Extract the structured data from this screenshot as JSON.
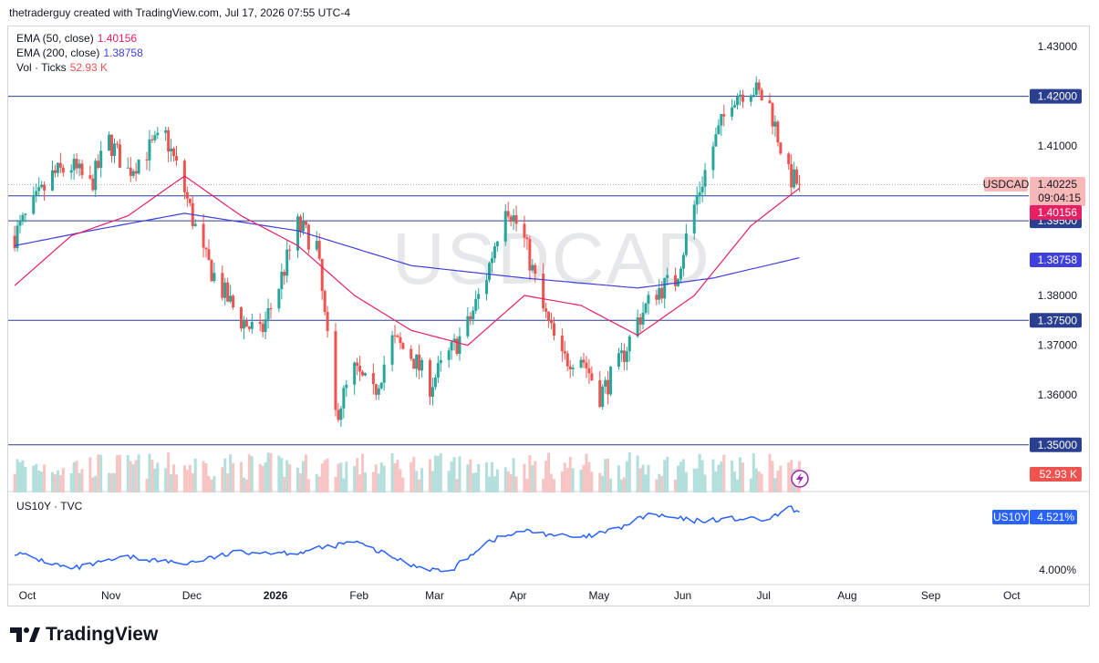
{
  "header": {
    "attribution": "thetraderguy created with TradingView.com, Jul 17, 2026 07:55 UTC-4"
  },
  "brand": {
    "name": "TradingView"
  },
  "watermark": "USDCAD",
  "legend": {
    "ema50_label": "EMA (50, close)",
    "ema50_value": "1.40156",
    "ema200_label": "EMA (200, close)",
    "ema200_value": "1.38758",
    "vol_label": "Vol · Ticks",
    "vol_value": "52.93 K"
  },
  "lower_pane": {
    "label": "US10Y · TVC"
  },
  "colors": {
    "up": "#26a69a",
    "down": "#ef5350",
    "ema50": "#e91e63",
    "ema200": "#3f3fdc",
    "hline": "#2a3f8f",
    "us10y": "#2962ff",
    "vol_up": "#b2dfdb",
    "vol_down": "#f7c4c4"
  },
  "price_axis": {
    "ticks": [
      "1.43000",
      "1.41000",
      "1.38000",
      "1.37000",
      "1.36000"
    ],
    "hline_tags": [
      "1.42000",
      "1.40000",
      "1.39500",
      "1.37500",
      "1.35000"
    ],
    "symbol_tag": "USDCAD",
    "last_price": "1.40225",
    "countdown": "09:04:15",
    "ema50_tag": "1.40156",
    "ema200_tag": "1.38758",
    "vol_tag": "52.93 K"
  },
  "lower_axis": {
    "symbol_tag": "US10Y",
    "value_tag": "4.521%",
    "tick": "4.000%"
  },
  "time_axis": [
    "Oct",
    "Nov",
    "Dec",
    "2026",
    "Feb",
    "Mar",
    "Apr",
    "May",
    "Jun",
    "Jul",
    "Aug",
    "Sep",
    "Oct"
  ],
  "chart_data": [
    {
      "type": "candlestick",
      "symbol": "USDCAD",
      "ylim": [
        1.348,
        1.433
      ],
      "horizontal_levels": [
        1.42,
        1.4,
        1.395,
        1.375,
        1.35
      ],
      "anchors_close": [
        [
          "2025-09-29",
          1.392
        ],
        [
          "2025-10-06",
          1.398
        ],
        [
          "2025-10-13",
          1.404
        ],
        [
          "2025-10-20",
          1.406
        ],
        [
          "2025-10-27",
          1.402
        ],
        [
          "2025-11-03",
          1.411
        ],
        [
          "2025-11-10",
          1.405
        ],
        [
          "2025-11-17",
          1.409
        ],
        [
          "2025-11-24",
          1.412
        ],
        [
          "2025-12-01",
          1.401
        ],
        [
          "2025-12-08",
          1.388
        ],
        [
          "2025-12-15",
          1.381
        ],
        [
          "2025-12-22",
          1.375
        ],
        [
          "2025-12-29",
          1.372
        ],
        [
          "2026-01-05",
          1.382
        ],
        [
          "2026-01-12",
          1.394
        ],
        [
          "2026-01-19",
          1.39
        ],
        [
          "2026-01-26",
          1.356
        ],
        [
          "2026-02-02",
          1.365
        ],
        [
          "2026-02-09",
          1.36
        ],
        [
          "2026-02-16",
          1.371
        ],
        [
          "2026-02-23",
          1.368
        ],
        [
          "2026-03-02",
          1.362
        ],
        [
          "2026-03-09",
          1.368
        ],
        [
          "2026-03-16",
          1.374
        ],
        [
          "2026-03-23",
          1.384
        ],
        [
          "2026-03-30",
          1.399
        ],
        [
          "2026-04-06",
          1.391
        ],
        [
          "2026-04-13",
          1.377
        ],
        [
          "2026-04-20",
          1.367
        ],
        [
          "2026-04-27",
          1.368
        ],
        [
          "2026-05-04",
          1.36
        ],
        [
          "2026-05-11",
          1.366
        ],
        [
          "2026-05-18",
          1.375
        ],
        [
          "2026-05-25",
          1.381
        ],
        [
          "2026-06-01",
          1.383
        ],
        [
          "2026-06-08",
          1.398
        ],
        [
          "2026-06-15",
          1.41
        ],
        [
          "2026-06-22",
          1.42
        ],
        [
          "2026-06-29",
          1.422
        ],
        [
          "2026-07-06",
          1.418
        ],
        [
          "2026-07-13",
          1.404
        ],
        [
          "2026-07-17",
          1.40225
        ]
      ],
      "ema50_anchors": [
        [
          "2025-09-29",
          1.382
        ],
        [
          "2025-10-20",
          1.392
        ],
        [
          "2025-11-10",
          1.396
        ],
        [
          "2025-12-01",
          1.404
        ],
        [
          "2025-12-22",
          1.396
        ],
        [
          "2026-01-12",
          1.39
        ],
        [
          "2026-02-02",
          1.38
        ],
        [
          "2026-02-23",
          1.373
        ],
        [
          "2026-03-16",
          1.37
        ],
        [
          "2026-04-06",
          1.38
        ],
        [
          "2026-04-27",
          1.378
        ],
        [
          "2026-05-18",
          1.372
        ],
        [
          "2026-06-08",
          1.38
        ],
        [
          "2026-06-29",
          1.394
        ],
        [
          "2026-07-17",
          1.40156
        ]
      ],
      "ema200_anchors": [
        [
          "2025-09-29",
          1.39
        ],
        [
          "2025-10-27",
          1.393
        ],
        [
          "2025-12-01",
          1.3965
        ],
        [
          "2026-01-12",
          1.393
        ],
        [
          "2026-02-23",
          1.386
        ],
        [
          "2026-04-06",
          1.3835
        ],
        [
          "2026-05-18",
          1.3815
        ],
        [
          "2026-06-15",
          1.3835
        ],
        [
          "2026-07-17",
          1.38758
        ]
      ],
      "last_price": 1.40225,
      "ema50_last": 1.40156,
      "ema200_last": 1.38758,
      "volume_last_k": 52.93
    },
    {
      "type": "line",
      "symbol": "US10Y",
      "unit": "%",
      "anchors": [
        [
          "2025-09-29",
          4.15
        ],
        [
          "2025-10-20",
          4.0
        ],
        [
          "2025-11-10",
          4.11
        ],
        [
          "2025-12-01",
          4.05
        ],
        [
          "2025-12-22",
          4.16
        ],
        [
          "2026-01-12",
          4.15
        ],
        [
          "2026-02-02",
          4.25
        ],
        [
          "2026-02-23",
          4.04
        ],
        [
          "2026-03-09",
          3.97
        ],
        [
          "2026-03-23",
          4.25
        ],
        [
          "2026-04-06",
          4.35
        ],
        [
          "2026-04-27",
          4.28
        ],
        [
          "2026-05-11",
          4.37
        ],
        [
          "2026-05-22",
          4.5
        ],
        [
          "2026-06-08",
          4.44
        ],
        [
          "2026-06-22",
          4.46
        ],
        [
          "2026-07-06",
          4.45
        ],
        [
          "2026-07-13",
          4.56
        ],
        [
          "2026-07-17",
          4.521
        ]
      ],
      "last_value": 4.521
    }
  ]
}
